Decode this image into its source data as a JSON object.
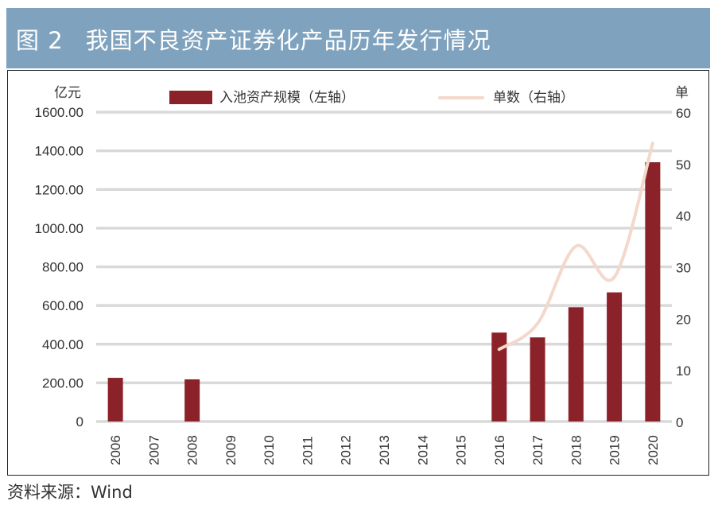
{
  "header": {
    "figure_label": "图 2",
    "title": "我国不良资产证券化产品历年发行情况"
  },
  "footer": {
    "source": "资料来源：Wind"
  },
  "colors": {
    "title_bar": "#7fa3be",
    "bar": "#8b2229",
    "line": "#f3d8cc",
    "grid": "#d9d9d9"
  },
  "chart_data": {
    "type": "bar",
    "title": "我国不良资产证券化产品历年发行情况",
    "categories": [
      "2006",
      "2007",
      "2008",
      "2009",
      "2010",
      "2011",
      "2012",
      "2013",
      "2014",
      "2015",
      "2016",
      "2017",
      "2018",
      "2019",
      "2020"
    ],
    "series": [
      {
        "name": "入池资产规模（左轴）",
        "type": "bar",
        "axis": "left",
        "values": [
          226,
          0,
          218,
          0,
          0,
          0,
          0,
          0,
          0,
          0,
          460,
          435,
          591,
          668,
          1341
        ]
      },
      {
        "name": "单数（右轴）",
        "type": "line",
        "smooth": true,
        "axis": "right",
        "values": [
          null,
          null,
          null,
          null,
          null,
          null,
          null,
          null,
          null,
          null,
          14,
          19,
          34,
          28,
          54
        ]
      }
    ],
    "left_axis": {
      "label": "亿元",
      "range": [
        0,
        1600
      ],
      "ticks": [
        "0",
        "200.00",
        "400.00",
        "600.00",
        "800.00",
        "1000.00",
        "1200.00",
        "1400.00",
        "1600.00"
      ]
    },
    "right_axis": {
      "label": "单",
      "range": [
        0,
        60
      ],
      "ticks": [
        "0",
        "10",
        "20",
        "30",
        "40",
        "50",
        "60"
      ]
    },
    "xlabel": "",
    "grid": true,
    "legend": {
      "placement": "top-center",
      "entries": [
        "入池资产规模（左轴）",
        "单数（右轴）"
      ],
      "labels": [
        "入池资产规模（左轴）",
        "单数（右轴）"
      ]
    }
  }
}
